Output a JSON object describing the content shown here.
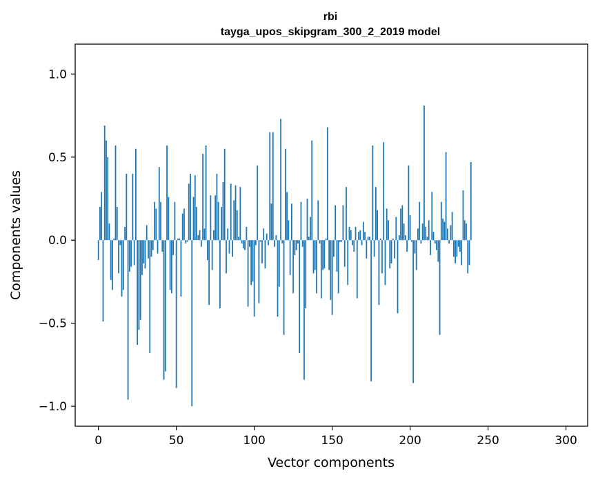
{
  "chart_data": {
    "type": "bar",
    "title": "rbi",
    "subtitle": "tayga_upos_skipgram_300_2_2019 model",
    "xlabel": "Vector components",
    "ylabel": "Components values",
    "xlim": [
      -14.9,
      313.9
    ],
    "ylim": [
      -1.12,
      1.18
    ],
    "xticks": [
      0,
      50,
      100,
      150,
      200,
      250,
      300
    ],
    "xtick_labels": [
      "0",
      "50",
      "100",
      "150",
      "200",
      "250",
      "300"
    ],
    "yticks": [
      -1.0,
      -0.5,
      0.0,
      0.5,
      1.0
    ],
    "ytick_labels": [
      "−1.0",
      "−0.5",
      "0.0",
      "0.5",
      "1.0"
    ],
    "bar_color": "#1f77b4",
    "values": [
      -0.12,
      0.2,
      0.29,
      -0.49,
      0.69,
      0.6,
      0.5,
      0.1,
      -0.24,
      -0.3,
      0.01,
      0.57,
      0.2,
      -0.2,
      -0.03,
      -0.34,
      -0.3,
      0.08,
      0.4,
      -0.96,
      -0.19,
      -0.16,
      0.4,
      -0.15,
      0.55,
      -0.63,
      -0.54,
      -0.48,
      -0.21,
      -0.14,
      -0.17,
      0.09,
      -0.11,
      -0.68,
      -0.1,
      -0.06,
      0.23,
      0.19,
      -0.08,
      0.44,
      0.23,
      -0.07,
      -0.84,
      -0.79,
      0.57,
      0.26,
      -0.3,
      -0.32,
      -0.09,
      0.23,
      -0.89,
      0.01,
      0.01,
      -0.34,
      0.16,
      0.19,
      -0.02,
      -0.01,
      0.34,
      0.4,
      -1.0,
      0.26,
      0.39,
      0.2,
      0.03,
      0.06,
      -0.04,
      0.52,
      0.07,
      0.57,
      -0.12,
      -0.39,
      0.27,
      -0.18,
      0.06,
      0.27,
      0.4,
      0.23,
      -0.41,
      0.2,
      0.35,
      0.55,
      -0.2,
      0.07,
      -0.08,
      0.34,
      -0.1,
      0.24,
      0.33,
      0.18,
      0.02,
      0.32,
      -0.02,
      -0.05,
      -0.06,
      0.08,
      -0.4,
      -0.04,
      -0.27,
      -0.25,
      -0.46,
      -0.03,
      0.45,
      -0.38,
      -0.01,
      -0.14,
      0.07,
      -0.17,
      0.04,
      -0.03,
      0.65,
      0.22,
      0.65,
      -0.04,
      0.03,
      -0.46,
      -0.28,
      0.73,
      -0.02,
      -0.57,
      0.55,
      0.29,
      0.12,
      -0.21,
      0.22,
      -0.32,
      -0.09,
      -0.06,
      -0.02,
      -0.68,
      0.23,
      -0.04,
      -0.84,
      -0.41,
      0.25,
      0.02,
      0.14,
      0.6,
      -0.2,
      -0.18,
      -0.32,
      0.24,
      -0.02,
      -0.35,
      -0.18,
      -0.17,
      0.01,
      0.68,
      -0.18,
      -0.36,
      -0.45,
      -0.1,
      0.21,
      -0.19,
      -0.32,
      -0.01,
      -0.01,
      0.21,
      -0.16,
      0.32,
      -0.27,
      0.08,
      0.06,
      -0.03,
      -0.07,
      0.08,
      -0.35,
      0.05,
      0.06,
      -0.03,
      0.11,
      0.05,
      -0.11,
      0.02,
      0.02,
      -0.85,
      0.57,
      -0.1,
      0.32,
      0.18,
      -0.39,
      0.01,
      -0.2,
      0.59,
      -0.27,
      0.19,
      0.12,
      -0.17,
      -0.14,
      0.01,
      -0.11,
      0.14,
      -0.44,
      0.03,
      0.19,
      0.21,
      0.1,
      0.03,
      -0.07,
      0.45,
      0.15,
      -0.01,
      -0.86,
      -0.08,
      -0.18,
      0.07,
      0.23,
      -0.02,
      0.1,
      0.81,
      0.08,
      0.02,
      0.12,
      -0.09,
      0.29,
      0.05,
      -0.02,
      -0.06,
      -0.13,
      -0.57,
      0.23,
      0.13,
      0.11,
      0.53,
      0.07,
      -0.02,
      0.09,
      0.17,
      -0.1,
      -0.14,
      -0.1,
      -0.04,
      -0.07,
      -0.15,
      0.3,
      0.12,
      0.1,
      -0.2,
      -0.15,
      0.47
    ]
  }
}
